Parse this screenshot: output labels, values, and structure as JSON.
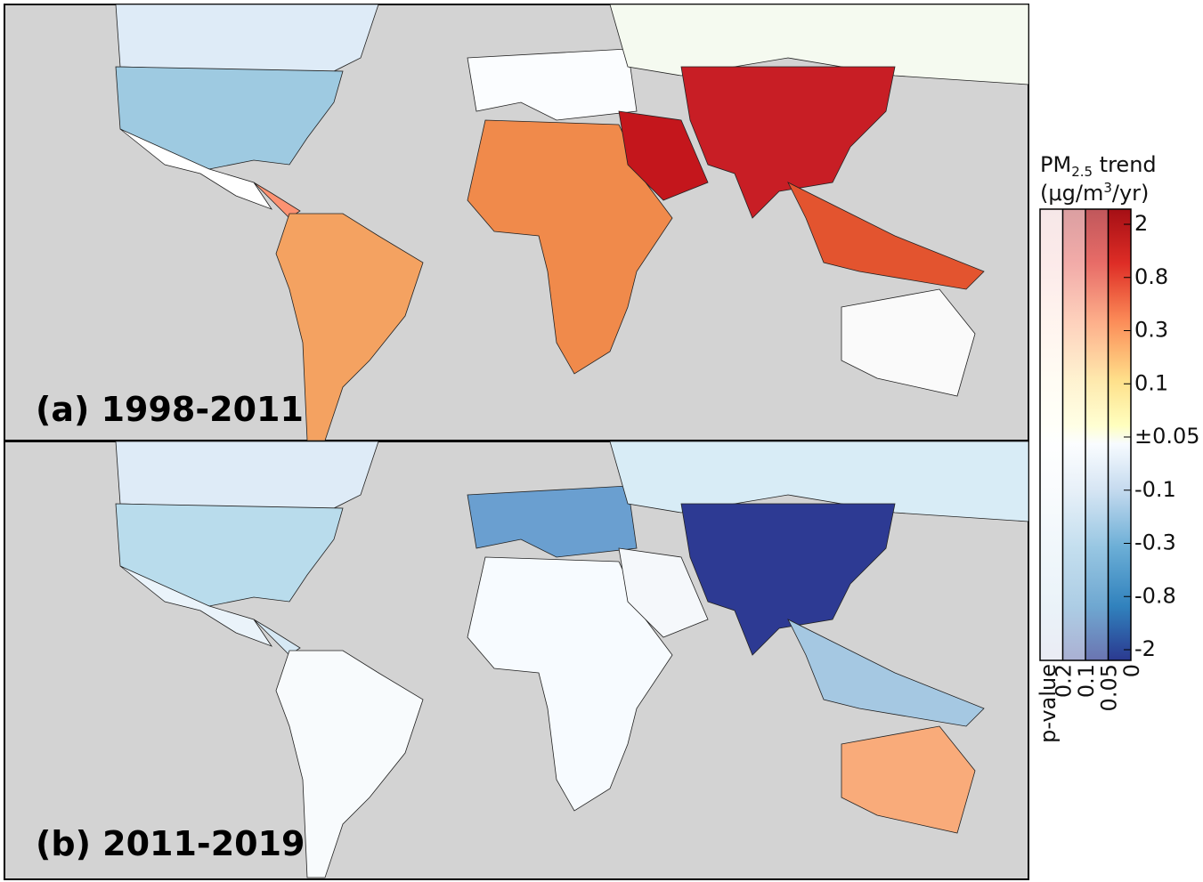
{
  "panels": [
    {
      "label": "(a) 1998-2011"
    },
    {
      "label": "(b) 2011-2019"
    }
  ],
  "colorbar": {
    "title_line1": [
      "PM",
      "2.5",
      " trend"
    ],
    "title_line2": [
      "(μg/m",
      "3",
      "/yr)"
    ],
    "tick_labels": [
      "2",
      "0.8",
      "0.3",
      "0.1",
      "±0.05",
      "-0.1",
      "-0.3",
      "-0.8",
      "-2"
    ],
    "pvalue_labels": [
      "p-value",
      "0.2",
      "0.1",
      "0.05",
      "0"
    ]
  }
}
